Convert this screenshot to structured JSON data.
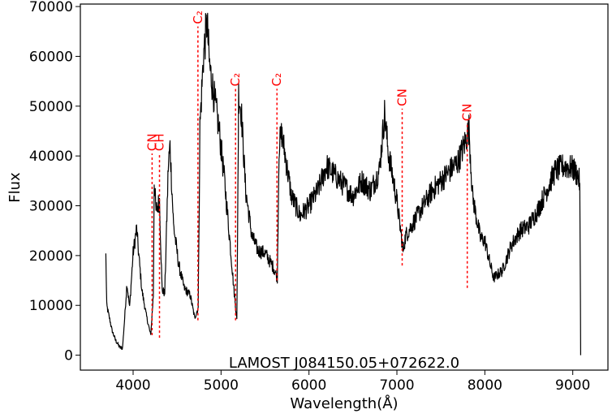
{
  "chart_data": {
    "type": "line",
    "title": "",
    "annotation_title": "LAMOST J084150.05+072622.0",
    "xlabel": "Wavelength(Å)",
    "ylabel": "Flux",
    "xlim": [
      3400,
      9400
    ],
    "ylim": [
      -3000,
      70500
    ],
    "xticks": [
      4000,
      5000,
      6000,
      7000,
      8000,
      9000
    ],
    "yticks": [
      0,
      10000,
      20000,
      30000,
      40000,
      50000,
      60000,
      70000
    ],
    "grid": false,
    "line_color": "#000000",
    "annotation_color": "#ff0000",
    "spectrum_anchor_points": [
      [
        3690,
        20000
      ],
      [
        3700,
        10000
      ],
      [
        3730,
        7500
      ],
      [
        3760,
        5000
      ],
      [
        3800,
        3000
      ],
      [
        3850,
        1500
      ],
      [
        3880,
        1500
      ],
      [
        3900,
        6500
      ],
      [
        3930,
        14500
      ],
      [
        3960,
        9500
      ],
      [
        4000,
        20500
      ],
      [
        4040,
        25500
      ],
      [
        4060,
        21000
      ],
      [
        4100,
        13000
      ],
      [
        4150,
        8000
      ],
      [
        4200,
        4000
      ],
      [
        4230,
        12000
      ],
      [
        4240,
        35000
      ],
      [
        4260,
        29000
      ],
      [
        4300,
        31000
      ],
      [
        4330,
        13000
      ],
      [
        4360,
        12500
      ],
      [
        4400,
        38000
      ],
      [
        4420,
        42000
      ],
      [
        4460,
        26000
      ],
      [
        4520,
        18000
      ],
      [
        4580,
        13500
      ],
      [
        4650,
        12000
      ],
      [
        4700,
        7500
      ],
      [
        4740,
        9500
      ],
      [
        4760,
        46000
      ],
      [
        4800,
        60000
      ],
      [
        4840,
        67000
      ],
      [
        4870,
        58000
      ],
      [
        4920,
        52000
      ],
      [
        4980,
        45000
      ],
      [
        5040,
        35000
      ],
      [
        5100,
        23000
      ],
      [
        5150,
        12500
      ],
      [
        5180,
        7000
      ],
      [
        5200,
        52500
      ],
      [
        5230,
        49000
      ],
      [
        5280,
        33000
      ],
      [
        5350,
        24000
      ],
      [
        5420,
        21000
      ],
      [
        5500,
        20500
      ],
      [
        5600,
        17500
      ],
      [
        5640,
        15500
      ],
      [
        5660,
        42000
      ],
      [
        5690,
        44500
      ],
      [
        5730,
        40000
      ],
      [
        5800,
        32000
      ],
      [
        5900,
        28000
      ],
      [
        6000,
        30000
      ],
      [
        6100,
        33000
      ],
      [
        6200,
        38000
      ],
      [
        6300,
        36000
      ],
      [
        6400,
        34000
      ],
      [
        6500,
        32000
      ],
      [
        6600,
        35000
      ],
      [
        6700,
        33000
      ],
      [
        6800,
        37000
      ],
      [
        6860,
        48500
      ],
      [
        6900,
        41000
      ],
      [
        6950,
        36000
      ],
      [
        7000,
        31000
      ],
      [
        7070,
        21000
      ],
      [
        7100,
        24000
      ],
      [
        7200,
        27000
      ],
      [
        7300,
        30000
      ],
      [
        7400,
        33000
      ],
      [
        7500,
        35000
      ],
      [
        7600,
        37000
      ],
      [
        7700,
        39000
      ],
      [
        7780,
        43000
      ],
      [
        7820,
        45500
      ],
      [
        7860,
        32000
      ],
      [
        7900,
        28000
      ],
      [
        7950,
        23500
      ],
      [
        8000,
        23000
      ],
      [
        8050,
        19000
      ],
      [
        8100,
        15500
      ],
      [
        8200,
        17000
      ],
      [
        8300,
        22000
      ],
      [
        8400,
        25000
      ],
      [
        8500,
        26000
      ],
      [
        8600,
        29000
      ],
      [
        8700,
        33000
      ],
      [
        8800,
        37000
      ],
      [
        8900,
        38000
      ],
      [
        9000,
        37500
      ],
      [
        9060,
        36000
      ],
      [
        9080,
        34500
      ],
      [
        9090,
        0
      ]
    ],
    "annotations": [
      {
        "label": "CN",
        "x": 4216,
        "y_bottom": 4000,
        "y_top": 40500
      },
      {
        "label": "CH",
        "x": 4300,
        "y_bottom": 3500,
        "y_top": 40500
      },
      {
        "label": "C₂",
        "x": 4737,
        "y_bottom": 7000,
        "y_top": 66000
      },
      {
        "label": "C₂",
        "x": 5165,
        "y_bottom": 7000,
        "y_top": 53500
      },
      {
        "label": "C₂",
        "x": 5636,
        "y_bottom": 15000,
        "y_top": 53500
      },
      {
        "label": "CN",
        "x": 7060,
        "y_bottom": 18000,
        "y_top": 49500
      },
      {
        "label": "CN",
        "x": 7800,
        "y_bottom": 13500,
        "y_top": 46500
      }
    ]
  }
}
